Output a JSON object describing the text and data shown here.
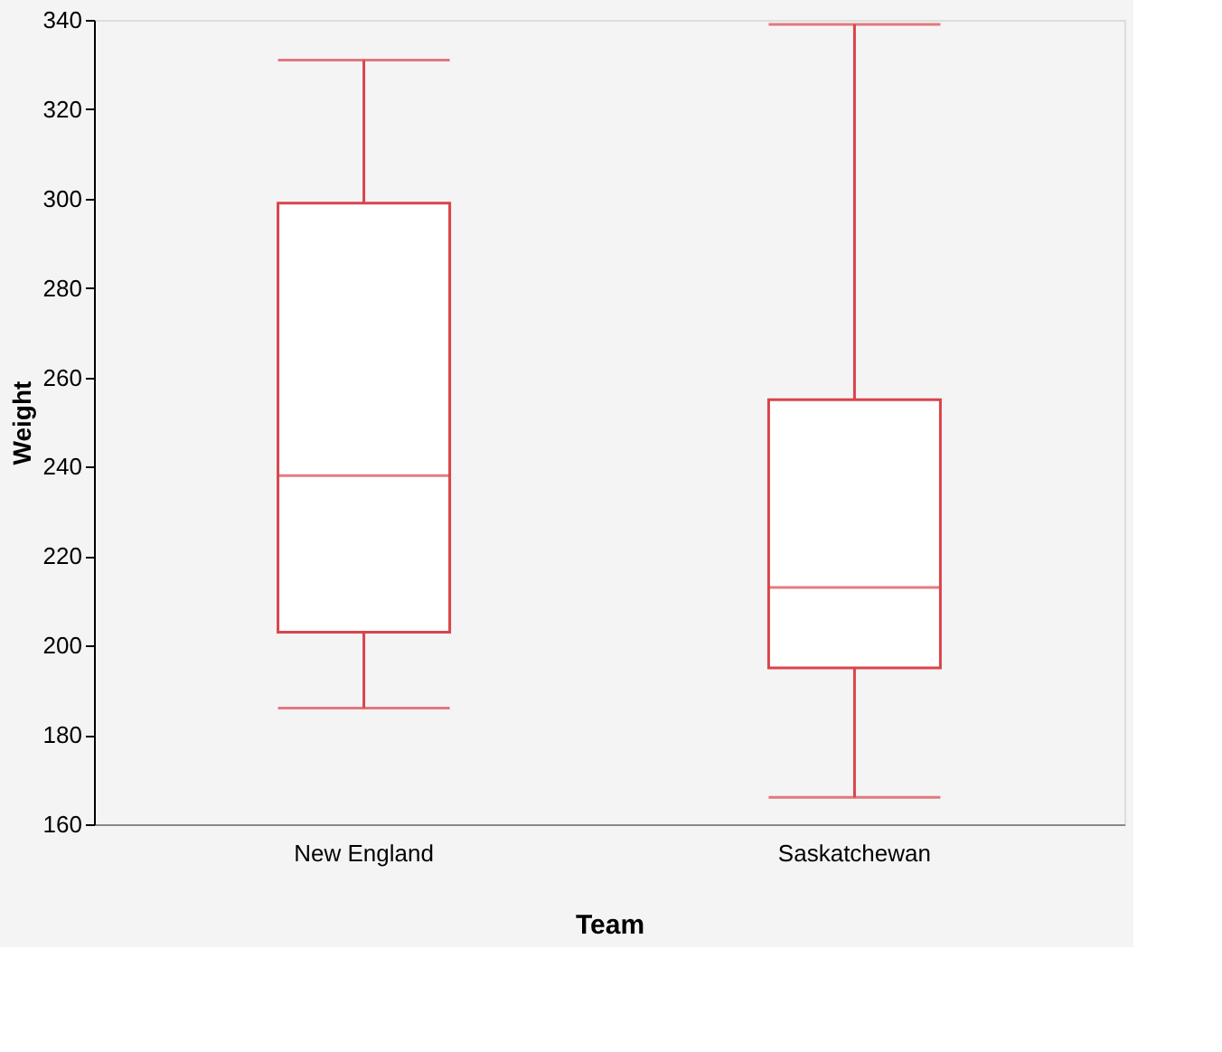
{
  "chart_data": {
    "type": "box",
    "xlabel": "Team",
    "ylabel": "Weight",
    "categories": [
      "New England",
      "Saskatchewan"
    ],
    "color": "#d9444a",
    "boxes": [
      {
        "low": 186,
        "q1": 203,
        "median": 238,
        "q3": 299,
        "high": 331
      },
      {
        "low": 166,
        "q1": 195,
        "median": 213,
        "q3": 255,
        "high": 339
      }
    ],
    "ylim": [
      160,
      340
    ],
    "yticks": [
      160,
      180,
      200,
      220,
      240,
      260,
      280,
      300,
      320,
      340
    ]
  }
}
